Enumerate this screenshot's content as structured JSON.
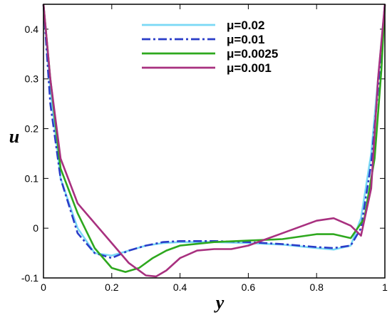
{
  "chart_data": {
    "type": "line",
    "title": "",
    "xlabel": "y",
    "ylabel": "u",
    "xlim": [
      0,
      1
    ],
    "ylim": [
      -0.1,
      0.45
    ],
    "xticks": [
      "0",
      "0.2",
      "0.4",
      "0.6",
      "0.8",
      "1"
    ],
    "yticks": [
      "-0.1",
      "0",
      "0.1",
      "0.2",
      "0.3",
      "0.4"
    ],
    "legend_position": "top-center",
    "grid": false,
    "series": [
      {
        "name": "μ=0.02",
        "color": "#7ad8f5",
        "dash": "solid",
        "x": [
          0,
          0.02,
          0.05,
          0.1,
          0.15,
          0.2,
          0.25,
          0.3,
          0.35,
          0.4,
          0.5,
          0.6,
          0.7,
          0.8,
          0.85,
          0.9,
          0.93,
          0.96,
          0.98,
          1.0
        ],
        "y": [
          0.45,
          0.28,
          0.1,
          0.0,
          -0.05,
          -0.055,
          -0.045,
          -0.035,
          -0.03,
          -0.028,
          -0.028,
          -0.03,
          -0.033,
          -0.04,
          -0.043,
          -0.035,
          0.02,
          0.15,
          0.3,
          0.45
        ]
      },
      {
        "name": "μ=0.01",
        "color": "#2a3cc8",
        "dash": "dashdot",
        "x": [
          0,
          0.02,
          0.05,
          0.1,
          0.15,
          0.2,
          0.25,
          0.3,
          0.35,
          0.4,
          0.5,
          0.6,
          0.7,
          0.8,
          0.85,
          0.9,
          0.93,
          0.96,
          0.98,
          1.0
        ],
        "y": [
          0.45,
          0.25,
          0.1,
          -0.01,
          -0.05,
          -0.06,
          -0.045,
          -0.035,
          -0.028,
          -0.026,
          -0.026,
          -0.028,
          -0.032,
          -0.038,
          -0.04,
          -0.035,
          0.0,
          0.13,
          0.28,
          0.45
        ]
      },
      {
        "name": "μ=0.0025",
        "color": "#2ea81e",
        "dash": "solid",
        "x": [
          0,
          0.02,
          0.05,
          0.1,
          0.15,
          0.2,
          0.24,
          0.28,
          0.32,
          0.36,
          0.4,
          0.5,
          0.6,
          0.7,
          0.8,
          0.85,
          0.9,
          0.94,
          0.97,
          0.99,
          1.0
        ],
        "y": [
          0.45,
          0.3,
          0.12,
          0.03,
          -0.04,
          -0.08,
          -0.088,
          -0.08,
          -0.06,
          -0.045,
          -0.035,
          -0.028,
          -0.025,
          -0.022,
          -0.012,
          -0.012,
          -0.02,
          0.02,
          0.14,
          0.32,
          0.45
        ]
      },
      {
        "name": "μ=0.001",
        "color": "#a8307f",
        "dash": "solid",
        "x": [
          0,
          0.02,
          0.05,
          0.1,
          0.15,
          0.2,
          0.25,
          0.3,
          0.33,
          0.36,
          0.4,
          0.45,
          0.5,
          0.55,
          0.6,
          0.7,
          0.8,
          0.85,
          0.9,
          0.93,
          0.96,
          0.98,
          1.0
        ],
        "y": [
          0.45,
          0.3,
          0.14,
          0.05,
          0.01,
          -0.03,
          -0.07,
          -0.095,
          -0.097,
          -0.085,
          -0.06,
          -0.045,
          -0.042,
          -0.042,
          -0.035,
          -0.01,
          0.015,
          0.02,
          0.005,
          -0.015,
          0.08,
          0.3,
          0.45
        ]
      }
    ]
  }
}
